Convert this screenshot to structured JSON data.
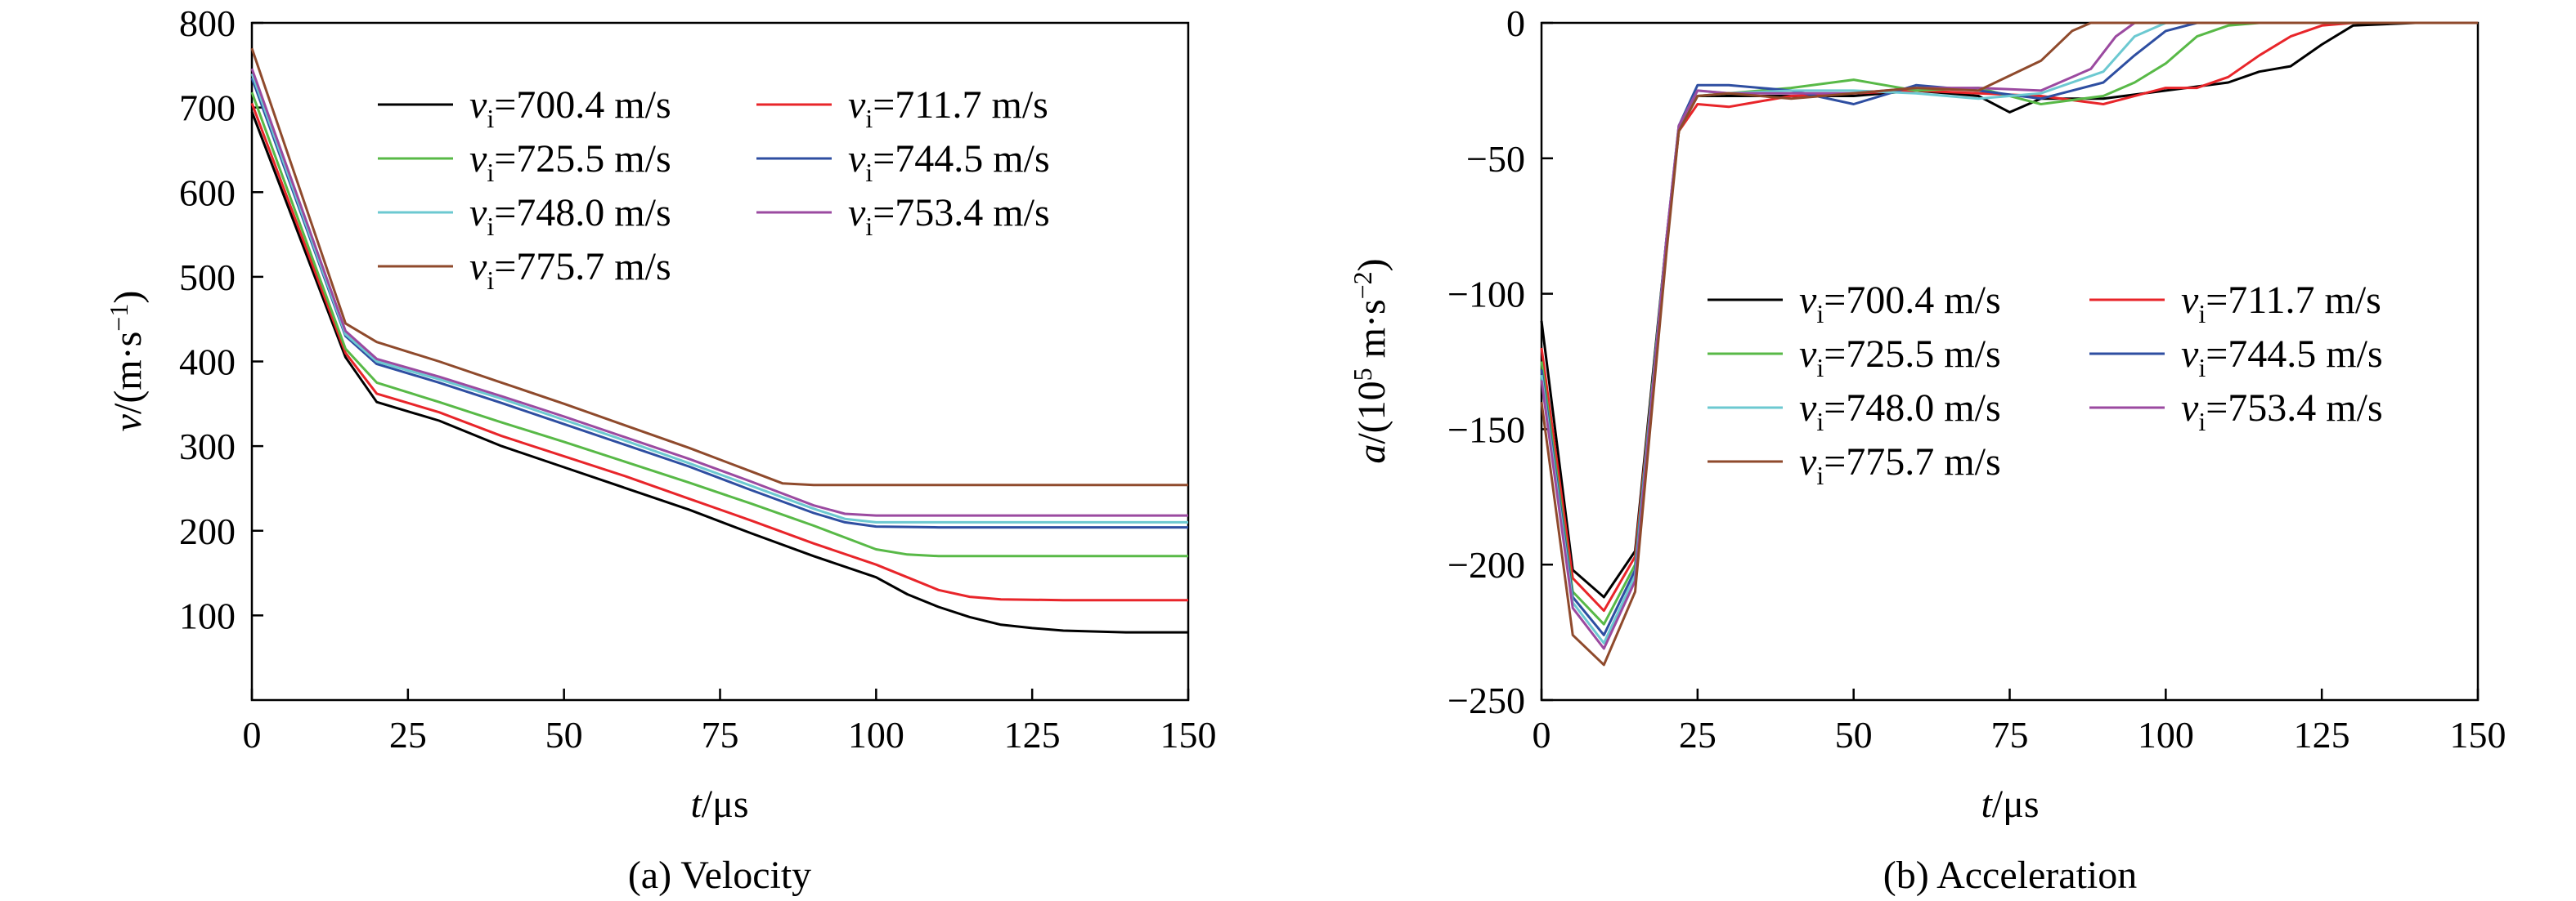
{
  "colors": {
    "700.4": "#000000",
    "711.7": "#e8252a",
    "725.5": "#58b947",
    "744.5": "#2e4ea1",
    "748.0": "#6cc9d1",
    "753.4": "#9b4aa0",
    "775.7": "#8f4a2c"
  },
  "chart_data": [
    {
      "type": "line",
      "caption": "(a) Velocity",
      "xlabel": "t/μs",
      "ylabel": "v/(m·s⁻¹)",
      "xlim": [
        0,
        150
      ],
      "ylim": [
        0,
        800
      ],
      "xticks": [
        0,
        25,
        50,
        75,
        100,
        125,
        150
      ],
      "yticks": [
        100,
        200,
        300,
        400,
        500,
        600,
        700,
        800
      ],
      "grid": false,
      "legend_position": "top-center",
      "series": [
        {
          "name": "v_i=700.4 m/s",
          "legend_rest": "=700.4 m/s",
          "color_key": "700.4",
          "x": [
            0,
            15,
            20,
            30,
            40,
            50,
            60,
            70,
            80,
            90,
            100,
            105,
            110,
            115,
            120,
            125,
            130,
            140,
            150
          ],
          "y": [
            695,
            405,
            352,
            330,
            300,
            275,
            250,
            225,
            197,
            170,
            145,
            125,
            110,
            98,
            89,
            85,
            82,
            80,
            80
          ]
        },
        {
          "name": "v_i=711.7 m/s",
          "legend_rest": "=711.7 m/s",
          "color_key": "711.7",
          "x": [
            0,
            15,
            20,
            30,
            40,
            50,
            60,
            70,
            80,
            90,
            100,
            105,
            110,
            115,
            120,
            130,
            150
          ],
          "y": [
            705,
            410,
            362,
            340,
            312,
            288,
            264,
            238,
            212,
            185,
            160,
            145,
            130,
            122,
            119,
            118,
            118
          ]
        },
        {
          "name": "v_i=725.5 m/s",
          "legend_rest": "=725.5 m/s",
          "color_key": "725.5",
          "x": [
            0,
            15,
            20,
            30,
            40,
            50,
            60,
            70,
            80,
            90,
            95,
            100,
            105,
            110,
            120,
            150
          ],
          "y": [
            718,
            415,
            375,
            352,
            328,
            305,
            281,
            257,
            232,
            206,
            192,
            178,
            172,
            170,
            170,
            170
          ]
        },
        {
          "name": "v_i=744.5 m/s",
          "legend_rest": "=744.5 m/s",
          "color_key": "744.5",
          "x": [
            0,
            15,
            20,
            30,
            40,
            50,
            60,
            70,
            80,
            90,
            95,
            100,
            110,
            150
          ],
          "y": [
            735,
            430,
            397,
            375,
            351,
            326,
            301,
            276,
            248,
            221,
            210,
            205,
            204,
            204
          ]
        },
        {
          "name": "v_i=748.0 m/s",
          "legend_rest": "=748.0 m/s",
          "color_key": "748.0",
          "x": [
            0,
            15,
            20,
            30,
            40,
            50,
            60,
            70,
            80,
            90,
            95,
            100,
            150
          ],
          "y": [
            740,
            432,
            400,
            379,
            356,
            331,
            306,
            280,
            253,
            226,
            214,
            210,
            210
          ]
        },
        {
          "name": "v_i=753.4 m/s",
          "legend_rest": "=753.4 m/s",
          "color_key": "753.4",
          "x": [
            0,
            15,
            20,
            30,
            40,
            50,
            60,
            70,
            80,
            90,
            95,
            100,
            150
          ],
          "y": [
            746,
            436,
            403,
            382,
            359,
            335,
            310,
            285,
            258,
            230,
            220,
            218,
            218
          ]
        },
        {
          "name": "v_i=775.7 m/s",
          "legend_rest": "=775.7 m/s",
          "color_key": "775.7",
          "x": [
            0,
            15,
            20,
            30,
            40,
            50,
            60,
            70,
            80,
            85,
            90,
            150
          ],
          "y": [
            770,
            445,
            423,
            400,
            375,
            350,
            324,
            298,
            270,
            256,
            254,
            254
          ]
        }
      ]
    },
    {
      "type": "line",
      "caption": "(b) Acceleration",
      "xlabel": "t/μs",
      "ylabel": "a/(10⁵ m·s⁻²)",
      "xlim": [
        0,
        150
      ],
      "ylim": [
        -250,
        0
      ],
      "xticks": [
        0,
        25,
        50,
        75,
        100,
        125,
        150
      ],
      "yticks": [
        -250,
        -200,
        -150,
        -100,
        -50,
        0
      ],
      "ytick_labels": [
        "−250",
        "−200",
        "−150",
        "−100",
        "−50",
        "0"
      ],
      "grid": false,
      "legend_position": "center",
      "series": [
        {
          "name": "v_i=700.4 m/s",
          "legend_rest": "=700.4 m/s",
          "color_key": "700.4",
          "x": [
            0,
            5,
            10,
            15,
            20,
            22,
            25,
            30,
            40,
            50,
            60,
            70,
            75,
            80,
            90,
            100,
            110,
            115,
            120,
            125,
            130,
            140,
            150
          ],
          "y": [
            -110,
            -202,
            -212,
            -195,
            -80,
            -40,
            -27,
            -27,
            -27,
            -27,
            -25,
            -27,
            -33,
            -28,
            -28,
            -25,
            -22,
            -18,
            -16,
            -8,
            -1,
            0,
            0
          ]
        },
        {
          "name": "v_i=711.7 m/s",
          "legend_rest": "=711.7 m/s",
          "color_key": "711.7",
          "x": [
            0,
            5,
            10,
            15,
            20,
            22,
            25,
            30,
            40,
            50,
            60,
            70,
            80,
            90,
            100,
            105,
            110,
            115,
            120,
            125,
            130,
            150
          ],
          "y": [
            -120,
            -205,
            -217,
            -197,
            -82,
            -40,
            -30,
            -31,
            -27,
            -26,
            -25,
            -26,
            -27,
            -30,
            -24,
            -24,
            -20,
            -12,
            -5,
            -1,
            0,
            0
          ]
        },
        {
          "name": "v_i=725.5 m/s",
          "legend_rest": "=725.5 m/s",
          "color_key": "725.5",
          "x": [
            0,
            5,
            10,
            15,
            20,
            22,
            25,
            30,
            40,
            50,
            60,
            70,
            80,
            90,
            95,
            100,
            105,
            110,
            115,
            150
          ],
          "y": [
            -125,
            -210,
            -222,
            -200,
            -80,
            -40,
            -27,
            -26,
            -24,
            -21,
            -25,
            -24,
            -30,
            -27,
            -22,
            -15,
            -5,
            -1,
            0,
            0
          ]
        },
        {
          "name": "v_i=744.5 m/s",
          "legend_rest": "=744.5 m/s",
          "color_key": "744.5",
          "x": [
            0,
            5,
            10,
            15,
            20,
            22,
            25,
            30,
            40,
            50,
            60,
            70,
            80,
            90,
            95,
            100,
            105,
            150
          ],
          "y": [
            -128,
            -212,
            -226,
            -202,
            -80,
            -38,
            -23,
            -23,
            -25,
            -30,
            -23,
            -25,
            -28,
            -22,
            -12,
            -3,
            0,
            0
          ]
        },
        {
          "name": "v_i=748.0 m/s",
          "legend_rest": "=748.0 m/s",
          "color_key": "748.0",
          "x": [
            0,
            5,
            10,
            15,
            20,
            22,
            25,
            30,
            40,
            50,
            60,
            70,
            80,
            90,
            95,
            100,
            150
          ],
          "y": [
            -130,
            -214,
            -229,
            -204,
            -80,
            -38,
            -25,
            -26,
            -25,
            -25,
            -26,
            -28,
            -26,
            -18,
            -5,
            0,
            0
          ]
        },
        {
          "name": "v_i=753.4 m/s",
          "legend_rest": "=753.4 m/s",
          "color_key": "753.4",
          "x": [
            0,
            5,
            10,
            15,
            20,
            22,
            25,
            30,
            40,
            50,
            60,
            70,
            80,
            88,
            92,
            95,
            100,
            150
          ],
          "y": [
            -132,
            -216,
            -231,
            -206,
            -80,
            -38,
            -25,
            -26,
            -26,
            -26,
            -24,
            -24,
            -25,
            -17,
            -5,
            0,
            0,
            0
          ]
        },
        {
          "name": "v_i=775.7 m/s",
          "legend_rest": "=775.7 m/s",
          "color_key": "775.7",
          "x": [
            0,
            5,
            10,
            15,
            20,
            22,
            25,
            30,
            40,
            50,
            60,
            70,
            80,
            85,
            88,
            150
          ],
          "y": [
            -140,
            -226,
            -237,
            -210,
            -85,
            -40,
            -27,
            -26,
            -28,
            -26,
            -24,
            -25,
            -14,
            -3,
            0,
            0
          ]
        }
      ]
    }
  ]
}
